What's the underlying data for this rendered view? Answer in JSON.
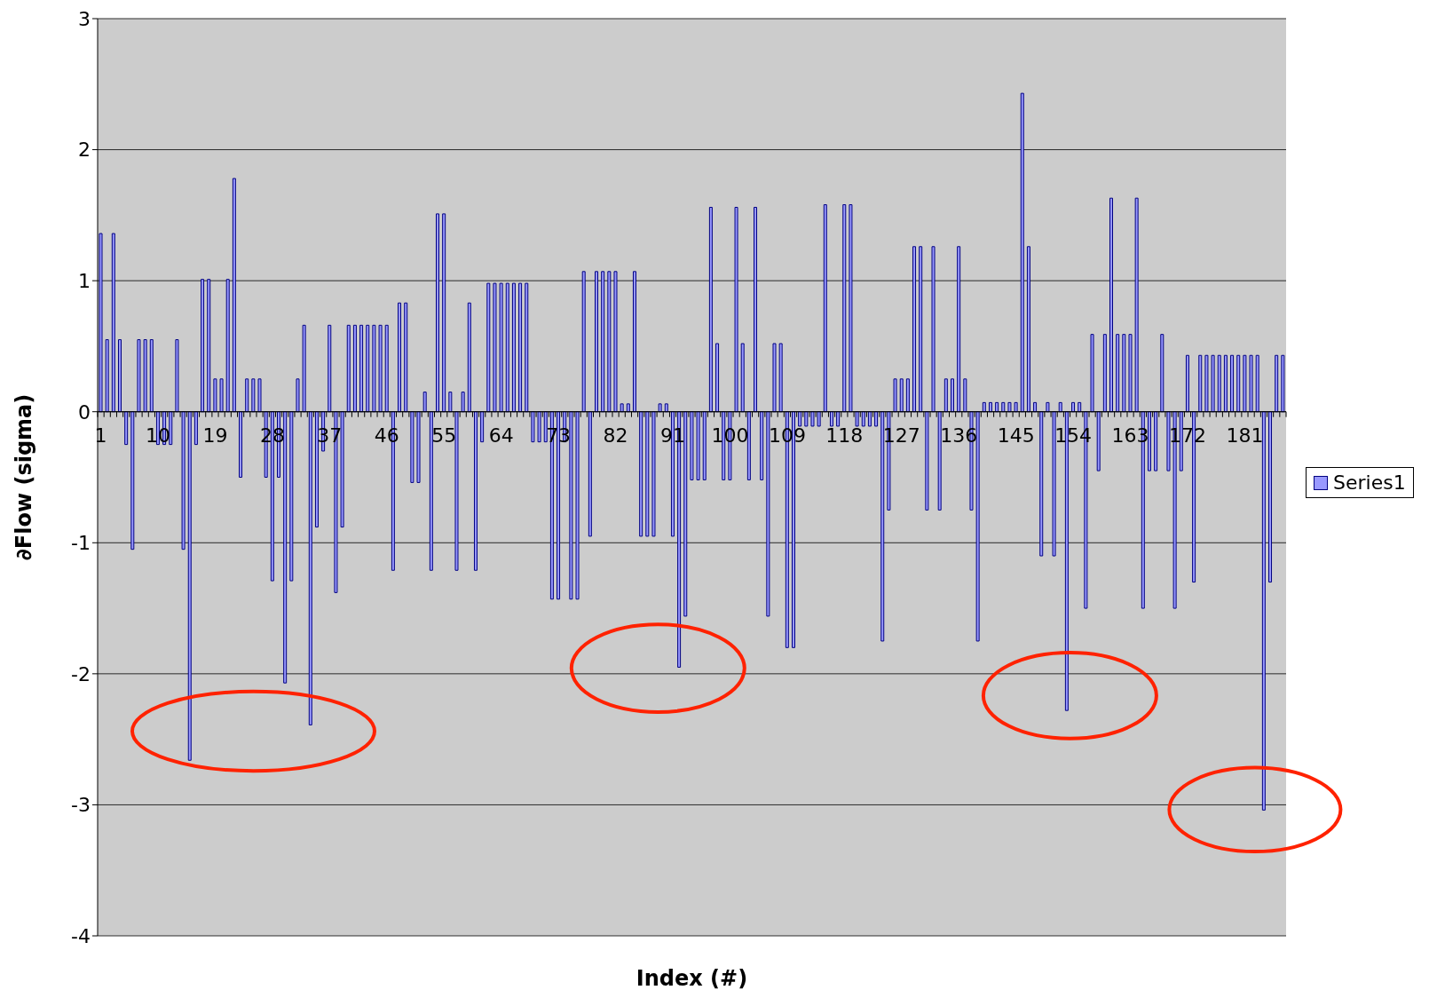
{
  "chart_data": {
    "type": "bar",
    "xlabel": "Index (#)",
    "ylabel": "∂Flow (sigma)",
    "categories": [
      "1",
      null,
      null,
      null,
      null,
      null,
      null,
      null,
      null,
      "10",
      null,
      null,
      null,
      null,
      null,
      null,
      null,
      null,
      "19",
      null,
      null,
      null,
      null,
      null,
      null,
      null,
      null,
      "28",
      null,
      null,
      null,
      null,
      null,
      null,
      null,
      null,
      "37",
      null,
      null,
      null,
      null,
      null,
      null,
      null,
      null,
      "46",
      null,
      null,
      null,
      null,
      null,
      null,
      null,
      null,
      "55",
      null,
      null,
      null,
      null,
      null,
      null,
      null,
      null,
      "64",
      null,
      null,
      null,
      null,
      null,
      null,
      null,
      null,
      "73",
      null,
      null,
      null,
      null,
      null,
      null,
      null,
      null,
      "82",
      null,
      null,
      null,
      null,
      null,
      null,
      null,
      null,
      "91",
      null,
      null,
      null,
      null,
      null,
      null,
      null,
      null,
      "100",
      null,
      null,
      null,
      null,
      null,
      null,
      null,
      null,
      "109",
      null,
      null,
      null,
      null,
      null,
      null,
      null,
      null,
      "118",
      null,
      null,
      null,
      null,
      null,
      null,
      null,
      null,
      "127",
      null,
      null,
      null,
      null,
      null,
      null,
      null,
      null,
      "136",
      null,
      null,
      null,
      null,
      null,
      null,
      null,
      null,
      "145",
      null,
      null,
      null,
      null,
      null,
      null,
      null,
      null,
      "154",
      null,
      null,
      null,
      null,
      null,
      null,
      null,
      null,
      "163",
      null,
      null,
      null,
      null,
      null,
      null,
      null,
      null,
      "172",
      null,
      null,
      null,
      null,
      null,
      null,
      null,
      null,
      "181",
      null,
      null,
      null,
      null,
      null,
      null
    ],
    "series": [
      {
        "name": "Series1",
        "color": "#9999ff",
        "values": [
          1.36,
          0.55,
          1.36,
          0.55,
          -0.25,
          -1.05,
          0.55,
          0.55,
          0.55,
          -0.25,
          -0.25,
          -0.25,
          0.55,
          -1.05,
          -2.66,
          -0.25,
          1.01,
          1.01,
          0.25,
          0.25,
          1.01,
          1.78,
          -0.5,
          0.25,
          0.25,
          0.25,
          -0.5,
          -1.29,
          -0.5,
          -2.07,
          -1.29,
          0.25,
          0.66,
          -2.39,
          -0.88,
          -0.3,
          0.66,
          -1.38,
          -0.88,
          0.66,
          0.66,
          0.66,
          0.66,
          0.66,
          0.66,
          0.66,
          -1.21,
          0.83,
          0.83,
          -0.54,
          -0.54,
          0.15,
          -1.21,
          1.51,
          1.51,
          0.15,
          -1.21,
          0.15,
          0.83,
          -1.21,
          -0.23,
          0.98,
          0.98,
          0.98,
          0.98,
          0.98,
          0.98,
          0.98,
          -0.23,
          -0.23,
          -0.23,
          -1.43,
          -1.43,
          -0.23,
          -1.43,
          -1.43,
          1.07,
          -0.95,
          1.07,
          1.07,
          1.07,
          1.07,
          0.06,
          0.06,
          1.07,
          -0.95,
          -0.95,
          -0.95,
          0.06,
          0.06,
          -0.95,
          -1.95,
          -1.56,
          -0.52,
          -0.52,
          -0.52,
          1.56,
          0.52,
          -0.52,
          -0.52,
          1.56,
          0.52,
          -0.52,
          1.56,
          -0.52,
          -1.56,
          0.52,
          0.52,
          -1.8,
          -1.8,
          -0.11,
          -0.11,
          -0.11,
          -0.11,
          1.58,
          -0.11,
          -0.11,
          1.58,
          1.58,
          -0.11,
          -0.11,
          -0.11,
          -0.11,
          -1.75,
          -0.75,
          0.25,
          0.25,
          0.25,
          1.26,
          1.26,
          -0.75,
          1.26,
          -0.75,
          0.25,
          0.25,
          1.26,
          0.25,
          -0.75,
          -1.75,
          0.07,
          0.07,
          0.07,
          0.07,
          0.07,
          0.07,
          2.43,
          1.26,
          0.07,
          -1.1,
          0.07,
          -1.1,
          0.07,
          -2.28,
          0.07,
          0.07,
          -1.5,
          0.59,
          -0.45,
          0.59,
          1.63,
          0.59,
          0.59,
          0.59,
          1.63,
          -1.5,
          -0.45,
          -0.45,
          0.59,
          -0.45,
          -1.5,
          -0.45,
          0.43,
          -1.3,
          0.43,
          0.43,
          0.43,
          0.43,
          0.43,
          0.43,
          0.43,
          0.43,
          0.43,
          0.43,
          -3.04,
          -1.3,
          0.43,
          0.43
        ]
      }
    ],
    "ylim": [
      -4,
      3
    ],
    "yticks": [
      -4,
      -3,
      -2,
      -1,
      0,
      1,
      2,
      3
    ],
    "grid": "y",
    "legend": "right"
  }
}
